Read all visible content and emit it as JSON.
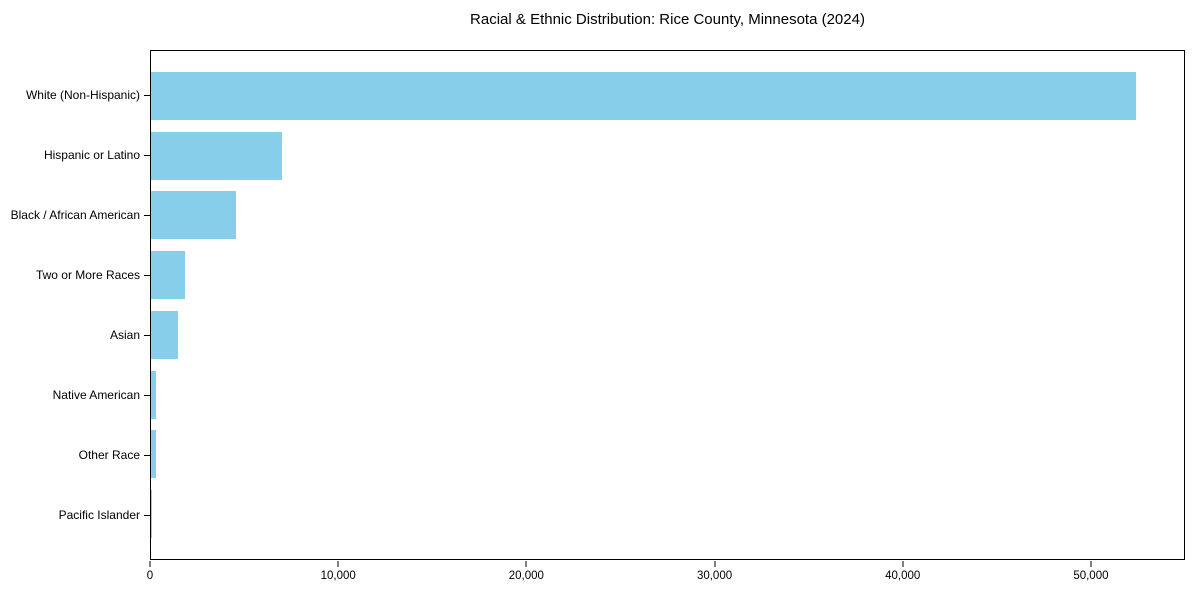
{
  "chart_data": {
    "type": "bar",
    "orientation": "horizontal",
    "title": "Racial & Ethnic Distribution: Rice County, Minnesota (2024)",
    "categories": [
      "White (Non-Hispanic)",
      "Hispanic or Latino",
      "Black / African American",
      "Two or More Races",
      "Asian",
      "Native American",
      "Other Race",
      "Pacific Islander"
    ],
    "values": [
      52450,
      7000,
      4520,
      1820,
      1450,
      250,
      240,
      30
    ],
    "xlabel": "",
    "ylabel": "",
    "xlim": [
      0,
      55000
    ],
    "x_tick_values": [
      0,
      10000,
      20000,
      30000,
      40000,
      50000
    ],
    "x_tick_labels": [
      "0",
      "10,000",
      "20,000",
      "30,000",
      "40,000",
      "50,000"
    ],
    "bar_color": "#87CEEB",
    "axis_color": "#000000",
    "background_color": "#FFFFFF",
    "grid": false,
    "legend": null
  }
}
